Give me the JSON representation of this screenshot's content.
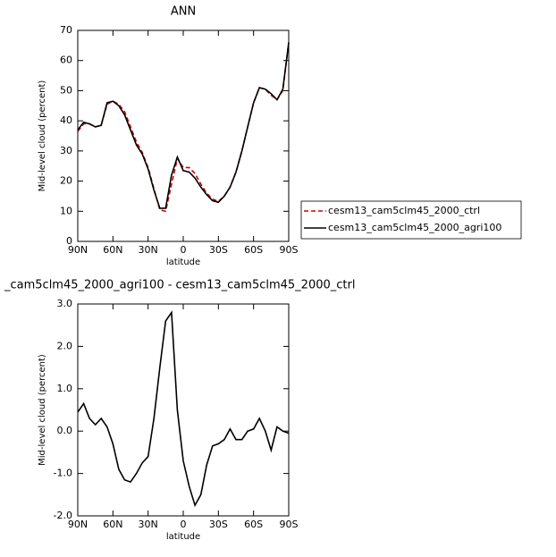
{
  "chart_data": [
    {
      "type": "line",
      "title": "ANN",
      "xlabel": "latitude",
      "ylabel": "Mid-level cloud (percent)",
      "x": [
        90,
        85,
        80,
        75,
        70,
        65,
        60,
        55,
        50,
        45,
        40,
        35,
        30,
        25,
        20,
        15,
        10,
        5,
        0,
        -5,
        -10,
        -15,
        -20,
        -25,
        -30,
        -35,
        -40,
        -45,
        -50,
        -55,
        -60,
        -65,
        -70,
        -75,
        -80,
        -85,
        -90
      ],
      "xlim": [
        90,
        -90
      ],
      "xticks": [
        {
          "value": 90,
          "label": "90N"
        },
        {
          "value": 60,
          "label": "60N"
        },
        {
          "value": 30,
          "label": "30N"
        },
        0,
        {
          "value": -30,
          "label": "30S"
        },
        {
          "value": -60,
          "label": "60S"
        },
        {
          "value": -90,
          "label": "90S"
        }
      ],
      "ylim": [
        0,
        70
      ],
      "yticks": [
        0,
        10,
        20,
        30,
        40,
        50,
        60,
        70
      ],
      "series": [
        {
          "name": "cesm13_cam5clm45_2000_ctrl",
          "color": "#cc0000",
          "dash": true,
          "values": [
            36.5,
            39,
            39,
            38,
            38.5,
            45.5,
            46.5,
            45.5,
            43,
            38,
            33,
            29.5,
            24.5,
            17.5,
            10.5,
            10,
            19,
            27.5,
            24.5,
            24.5,
            22.5,
            19,
            16,
            14,
            13.3,
            15,
            18,
            23,
            30,
            38,
            46,
            51,
            50.5,
            48.5,
            47,
            50,
            66
          ]
        },
        {
          "name": "cesm13_cam5clm45_2000_agri100",
          "color": "#000000",
          "dash": false,
          "values": [
            37,
            39.5,
            39,
            38,
            38.5,
            46,
            46.5,
            45,
            42,
            37,
            32,
            29,
            24,
            17,
            11,
            11,
            22,
            28,
            23.5,
            23,
            21,
            18,
            15.5,
            13.5,
            13,
            15,
            18,
            23,
            30,
            38,
            46,
            51,
            50.5,
            49,
            47,
            50.5,
            66
          ]
        }
      ]
    },
    {
      "type": "line",
      "title": "_cam5clm45_2000_agri100 - cesm13_cam5clm45_2000_ctrl",
      "xlabel": "latitude",
      "ylabel": "Mid-level cloud (percent)",
      "x": [
        90,
        85,
        80,
        75,
        70,
        65,
        60,
        55,
        50,
        45,
        40,
        35,
        30,
        25,
        20,
        15,
        10,
        5,
        0,
        -5,
        -10,
        -15,
        -20,
        -25,
        -30,
        -35,
        -40,
        -45,
        -50,
        -55,
        -60,
        -65,
        -70,
        -75,
        -80,
        -85,
        -90
      ],
      "xlim": [
        90,
        -90
      ],
      "xticks": [
        {
          "value": 90,
          "label": "90N"
        },
        {
          "value": 60,
          "label": "60N"
        },
        {
          "value": 30,
          "label": "30N"
        },
        0,
        {
          "value": -30,
          "label": "30S"
        },
        {
          "value": -60,
          "label": "60S"
        },
        {
          "value": -90,
          "label": "90S"
        }
      ],
      "ylim": [
        -2,
        3
      ],
      "yticks": [
        {
          "value": -2,
          "label": "-2.0"
        },
        {
          "value": -1,
          "label": "-1.0"
        },
        {
          "value": 0,
          "label": "0.0"
        },
        {
          "value": 1,
          "label": "1.0"
        },
        {
          "value": 2,
          "label": "2.0"
        },
        {
          "value": 3,
          "label": "3.0"
        }
      ],
      "series": [
        {
          "color": "#000000",
          "dash": false,
          "values": [
            0.45,
            0.65,
            0.3,
            0.15,
            0.3,
            0.1,
            -0.3,
            -0.9,
            -1.15,
            -1.2,
            -1.0,
            -0.75,
            -0.6,
            0.3,
            1.5,
            2.6,
            2.8,
            0.5,
            -0.7,
            -1.3,
            -1.75,
            -1.5,
            -0.8,
            -0.35,
            -0.3,
            -0.2,
            0.05,
            -0.2,
            -0.2,
            0.0,
            0.05,
            0.3,
            0.0,
            -0.45,
            0.1,
            0.0,
            -0.05
          ]
        }
      ]
    }
  ]
}
